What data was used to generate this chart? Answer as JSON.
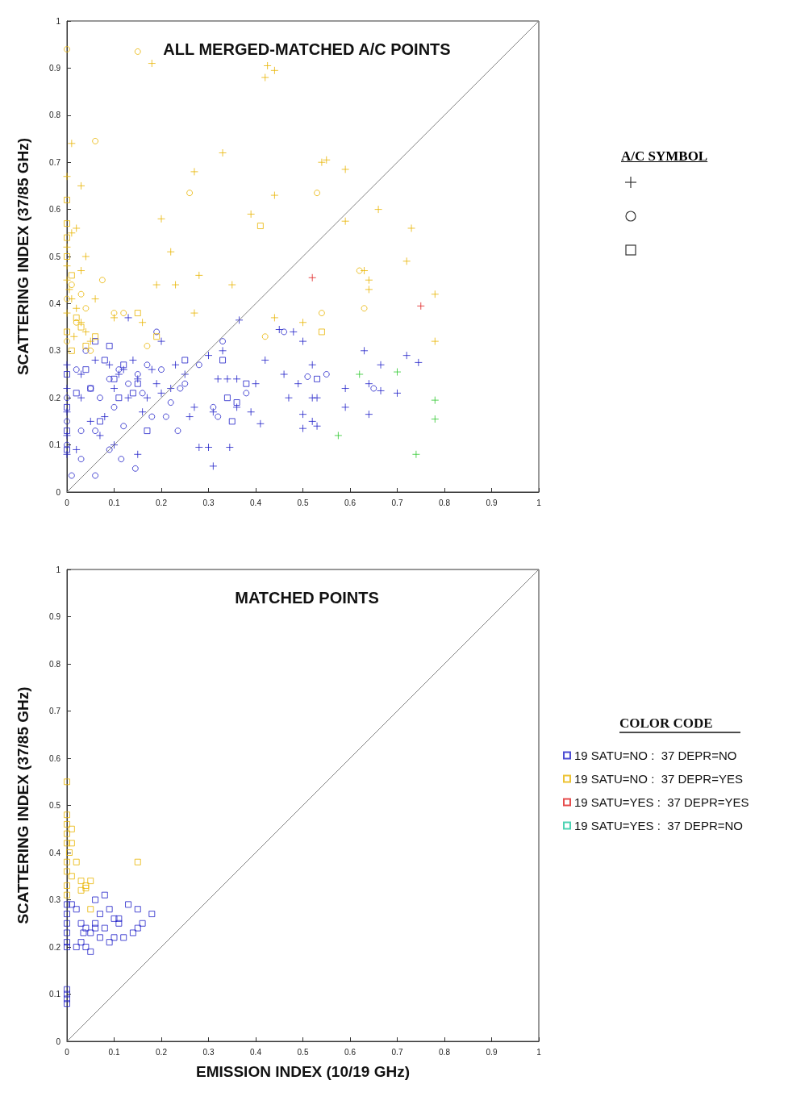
{
  "chart_data": [
    {
      "type": "scatter",
      "title": "ALL MERGED-MATCHED A/C POINTS",
      "ylabel": "SCATTERING INDEX (37/85 GHz)",
      "legend_title": "A/C SYMBOL",
      "legend": "right",
      "xlim": [
        0,
        1
      ],
      "ylim": [
        0,
        1
      ],
      "xticks": [
        0,
        0.1,
        0.2,
        0.3,
        0.4,
        0.5,
        0.6,
        0.7,
        0.8,
        0.9,
        1
      ],
      "yticks": [
        0,
        0.1,
        0.2,
        0.3,
        0.4,
        0.5,
        0.6,
        0.7,
        0.8,
        0.9,
        1
      ],
      "grid": false,
      "series": [
        {
          "color": "#2020c8",
          "marker": "cross",
          "x": [
            0.13,
            0.365,
            0.45,
            0.48,
            0.5,
            0.63,
            0.72,
            0.745,
            0.42,
            0.3,
            0.33,
            0.2,
            0.23,
            0.32,
            0.34,
            0.36,
            0.4,
            0.46,
            0.52,
            0.49,
            0.47,
            0.52,
            0.53,
            0.59,
            0.59,
            0.64,
            0.665,
            0.7,
            0.665,
            0.64,
            0.5,
            0.5,
            0.52,
            0.53,
            0.39,
            0.41,
            0.36,
            0.31,
            0.28,
            0.3,
            0.345,
            0.31,
            0.2,
            0.25,
            0.26,
            0.27,
            0.22,
            0.18,
            0.15,
            0.12,
            0.09,
            0.06,
            0.03,
            0.1,
            0.13,
            0.16,
            0.08,
            0.05,
            0.02,
            0.1,
            0.15,
            0.07,
            0,
            0,
            0,
            0,
            0,
            0.03,
            0.11,
            0.14,
            0.19,
            0.17
          ],
          "values": [
            0.37,
            0.365,
            0.345,
            0.34,
            0.32,
            0.3,
            0.29,
            0.275,
            0.28,
            0.29,
            0.3,
            0.32,
            0.27,
            0.24,
            0.24,
            0.24,
            0.23,
            0.25,
            0.27,
            0.23,
            0.2,
            0.2,
            0.2,
            0.22,
            0.18,
            0.23,
            0.27,
            0.21,
            0.215,
            0.165,
            0.165,
            0.135,
            0.15,
            0.14,
            0.17,
            0.145,
            0.18,
            0.17,
            0.095,
            0.095,
            0.095,
            0.055,
            0.21,
            0.25,
            0.16,
            0.18,
            0.22,
            0.26,
            0.24,
            0.26,
            0.27,
            0.28,
            0.25,
            0.22,
            0.2,
            0.17,
            0.16,
            0.15,
            0.09,
            0.1,
            0.08,
            0.12,
            0.27,
            0.22,
            0.17,
            0.12,
            0.08,
            0.2,
            0.25,
            0.28,
            0.23,
            0.2
          ]
        },
        {
          "color": "#2020c8",
          "marker": "circle",
          "x": [
            0.01,
            0.06,
            0.115,
            0.145,
            0.03,
            0.09,
            0.18,
            0.21,
            0.235,
            0.22,
            0.24,
            0.31,
            0.32,
            0.33,
            0.19,
            0.46,
            0.51,
            0.55,
            0.38,
            0.65,
            0.28,
            0.25,
            0.16,
            0.12,
            0.1,
            0.06,
            0.03,
            0.07,
            0.05,
            0.13,
            0.17,
            0.09,
            0.02,
            0.04,
            0.11,
            0.15,
            0,
            0,
            0,
            0.2
          ],
          "values": [
            0.035,
            0.035,
            0.07,
            0.05,
            0.07,
            0.09,
            0.16,
            0.16,
            0.13,
            0.19,
            0.22,
            0.18,
            0.16,
            0.32,
            0.34,
            0.34,
            0.245,
            0.25,
            0.21,
            0.22,
            0.27,
            0.23,
            0.21,
            0.14,
            0.18,
            0.13,
            0.13,
            0.2,
            0.22,
            0.23,
            0.27,
            0.24,
            0.26,
            0.3,
            0.26,
            0.25,
            0.2,
            0.15,
            0.1,
            0.26
          ]
        },
        {
          "color": "#2020c8",
          "marker": "square",
          "x": [
            0.06,
            0.09,
            0.25,
            0.33,
            0.17,
            0.34,
            0.35,
            0.36,
            0.38,
            0.53,
            0.07,
            0.05,
            0.1,
            0.12,
            0.14,
            0.02,
            0,
            0,
            0,
            0,
            0.08,
            0.15,
            0.04,
            0.11
          ],
          "values": [
            0.32,
            0.31,
            0.28,
            0.28,
            0.13,
            0.2,
            0.15,
            0.19,
            0.23,
            0.24,
            0.15,
            0.22,
            0.24,
            0.27,
            0.21,
            0.21,
            0.25,
            0.18,
            0.13,
            0.09,
            0.28,
            0.23,
            0.26,
            0.2
          ]
        },
        {
          "color": "#e8b400",
          "marker": "cross",
          "x": [
            0.01,
            0,
            0.03,
            0.18,
            0.42,
            0.425,
            0.44,
            0.33,
            0.27,
            0.39,
            0.2,
            0.44,
            0.55,
            0.54,
            0.59,
            0.59,
            0.66,
            0.73,
            0.02,
            0.22,
            0.04,
            0.72,
            0.63,
            0.64,
            0.64,
            0.78,
            0.19,
            0.23,
            0.28,
            0.35,
            0.03,
            0.06,
            0.1,
            0.27,
            0.5,
            0.44,
            0.78,
            0.16,
            0.01,
            0,
            0,
            0,
            0.005,
            0.01,
            0.02,
            0,
            0.03,
            0.04,
            0.015,
            0.05
          ],
          "values": [
            0.74,
            0.67,
            0.65,
            0.91,
            0.88,
            0.905,
            0.895,
            0.72,
            0.68,
            0.59,
            0.58,
            0.63,
            0.705,
            0.7,
            0.685,
            0.575,
            0.6,
            0.56,
            0.56,
            0.51,
            0.5,
            0.49,
            0.47,
            0.45,
            0.43,
            0.42,
            0.44,
            0.44,
            0.46,
            0.44,
            0.47,
            0.41,
            0.37,
            0.38,
            0.36,
            0.37,
            0.32,
            0.36,
            0.55,
            0.52,
            0.48,
            0.45,
            0.43,
            0.41,
            0.39,
            0.38,
            0.36,
            0.34,
            0.33,
            0.32
          ]
        },
        {
          "color": "#e8b400",
          "marker": "circle",
          "x": [
            0,
            0.15,
            0.06,
            0.26,
            0.53,
            0.62,
            0.63,
            0.12,
            0.04,
            0.075,
            0.1,
            0.54,
            0.42,
            0.17,
            0.01,
            0,
            0.02,
            0,
            0.05,
            0.03
          ],
          "values": [
            0.94,
            0.935,
            0.745,
            0.635,
            0.635,
            0.47,
            0.39,
            0.38,
            0.39,
            0.45,
            0.38,
            0.38,
            0.33,
            0.31,
            0.44,
            0.41,
            0.36,
            0.32,
            0.3,
            0.42
          ]
        },
        {
          "color": "#e8b400",
          "marker": "square",
          "x": [
            0.41,
            0,
            0,
            0,
            0.15,
            0.19,
            0.54,
            0,
            0.01,
            0.02,
            0.03,
            0,
            0.06,
            0.04,
            0.01
          ],
          "values": [
            0.565,
            0.62,
            0.57,
            0.54,
            0.38,
            0.33,
            0.34,
            0.5,
            0.46,
            0.37,
            0.35,
            0.34,
            0.33,
            0.31,
            0.3
          ]
        },
        {
          "color": "#e02020",
          "marker": "cross",
          "x": [
            0.52,
            0.75
          ],
          "values": [
            0.455,
            0.395
          ]
        },
        {
          "color": "#30c830",
          "marker": "cross",
          "x": [
            0.62,
            0.7,
            0.78,
            0.78,
            0.575,
            0.74
          ],
          "values": [
            0.25,
            0.255,
            0.195,
            0.155,
            0.12,
            0.08
          ]
        },
        {
          "type": "line",
          "color": "#808080",
          "marker": "none",
          "x": [
            0,
            1
          ],
          "values": [
            0,
            1
          ]
        }
      ]
    },
    {
      "type": "scatter",
      "title": "MATCHED POINTS",
      "xlabel": "EMISSION INDEX (10/19 GHz)",
      "ylabel": "SCATTERING INDEX (37/85 GHz)",
      "legend_title": "COLOR CODE",
      "legend": "right",
      "xlim": [
        0,
        1
      ],
      "ylim": [
        0,
        1
      ],
      "xticks": [
        0,
        0.1,
        0.2,
        0.3,
        0.4,
        0.5,
        0.6,
        0.7,
        0.8,
        0.9,
        1
      ],
      "yticks": [
        0,
        0.1,
        0.2,
        0.3,
        0.4,
        0.5,
        0.6,
        0.7,
        0.8,
        0.9,
        1
      ],
      "grid": false,
      "series": [
        {
          "name": "19 SATU=NO :  37 DEPR=NO",
          "color": "#2020c8",
          "marker": "square",
          "x": [
            0,
            0,
            0,
            0,
            0,
            0,
            0,
            0,
            0,
            0,
            0.01,
            0.02,
            0.03,
            0.04,
            0.05,
            0.06,
            0.07,
            0.08,
            0.06,
            0.09,
            0.1,
            0.11,
            0.13,
            0.15,
            0.18,
            0.16,
            0.15,
            0.14,
            0.09,
            0.1,
            0.08,
            0.05,
            0.04,
            0.03,
            0.02,
            0.07,
            0.06,
            0.11,
            0.12,
            0.035
          ],
          "values": [
            0.29,
            0.27,
            0.25,
            0.23,
            0.21,
            0.2,
            0.11,
            0.1,
            0.09,
            0.08,
            0.29,
            0.28,
            0.25,
            0.24,
            0.23,
            0.25,
            0.27,
            0.31,
            0.3,
            0.28,
            0.26,
            0.25,
            0.29,
            0.28,
            0.27,
            0.25,
            0.24,
            0.23,
            0.21,
            0.22,
            0.24,
            0.19,
            0.2,
            0.21,
            0.2,
            0.22,
            0.24,
            0.26,
            0.22,
            0.23
          ]
        },
        {
          "name": "19 SATU=NO :  37 DEPR=YES",
          "color": "#e8b400",
          "marker": "square",
          "x": [
            0,
            0,
            0,
            0,
            0,
            0.005,
            0,
            0,
            0.01,
            0,
            0,
            0.02,
            0.15,
            0.03,
            0.04,
            0.04,
            0.05,
            0.03,
            0.05,
            0.01,
            0.01
          ],
          "values": [
            0.55,
            0.48,
            0.46,
            0.44,
            0.42,
            0.4,
            0.38,
            0.36,
            0.35,
            0.33,
            0.31,
            0.38,
            0.38,
            0.34,
            0.33,
            0.325,
            0.34,
            0.32,
            0.28,
            0.42,
            0.45
          ]
        },
        {
          "name": "19 SATU=YES :  37 DEPR=YES",
          "color": "#e02020",
          "marker": "square"
        },
        {
          "name": "19 SATU=YES :  37 DEPR=NO",
          "color": "#20c8a0",
          "marker": "square"
        },
        {
          "type": "line",
          "color": "#808080",
          "marker": "none",
          "x": [
            0,
            1
          ],
          "values": [
            0,
            1
          ]
        }
      ]
    }
  ]
}
